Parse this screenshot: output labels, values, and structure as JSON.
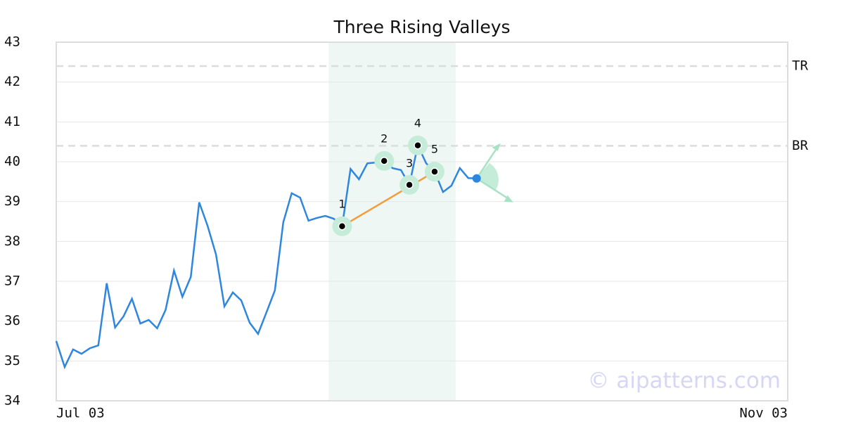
{
  "chart_data": {
    "type": "line",
    "title": "Three Rising Valleys",
    "values": [
      35.5,
      34.85,
      35.29,
      35.18,
      35.32,
      35.39,
      36.95,
      35.84,
      36.12,
      36.56,
      35.94,
      36.03,
      35.82,
      36.28,
      37.27,
      36.61,
      37.11,
      38.98,
      38.39,
      37.67,
      36.37,
      36.72,
      36.52,
      35.96,
      35.68,
      36.22,
      36.77,
      38.48,
      39.21,
      39.1,
      38.52,
      38.59,
      38.64,
      38.57,
      38.38,
      39.82,
      39.56,
      39.96,
      39.98,
      40.02,
      39.84,
      39.79,
      39.42,
      40.41,
      39.96,
      39.75,
      39.24,
      39.4,
      39.84,
      39.59,
      39.58
    ],
    "color": "#2e86de",
    "xlim": [
      0,
      87
    ],
    "xticks": [
      {
        "value": 0,
        "label": "Jul 03"
      },
      {
        "value": 87,
        "label": "Nov 03"
      }
    ],
    "ylim": [
      34,
      43
    ],
    "yticks": [
      34,
      35,
      36,
      37,
      38,
      39,
      40,
      41,
      42,
      43
    ],
    "grid": true,
    "levels": [
      {
        "name": "TR",
        "value": 42.4
      },
      {
        "name": "BR",
        "value": 40.4
      }
    ],
    "region": [
      32.4,
      47.5
    ],
    "pattern": [
      {
        "label": "1",
        "x": 34,
        "y": 38.38
      },
      {
        "label": "2",
        "x": 39,
        "y": 40.02
      },
      {
        "label": "3",
        "x": 42,
        "y": 39.42
      },
      {
        "label": "4",
        "x": 43,
        "y": 40.41
      },
      {
        "label": "5",
        "x": 45,
        "y": 39.75
      }
    ],
    "watermark": "© aipatterns.com"
  }
}
